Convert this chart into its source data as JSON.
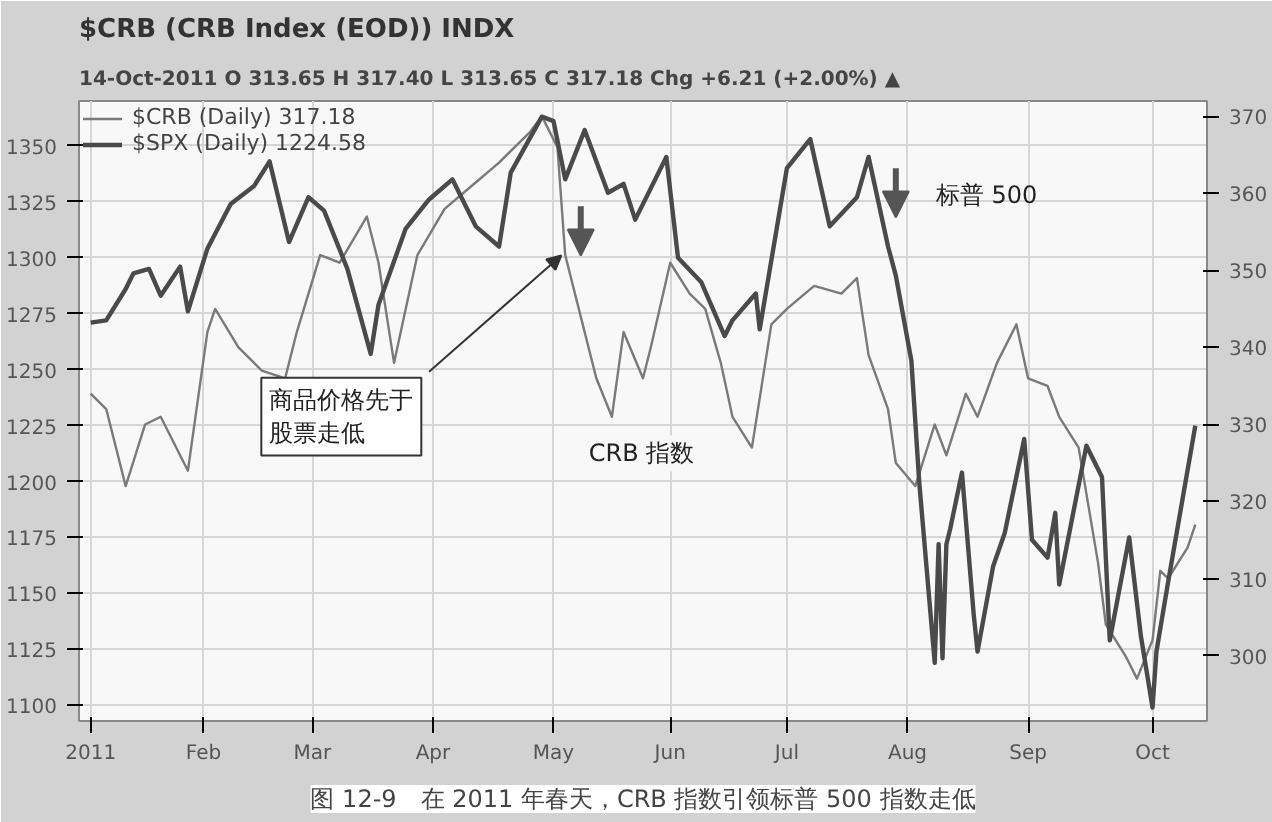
{
  "chart_data": {
    "type": "line",
    "title": "$CRB (CRB Index (EOD)) INDX",
    "subtitle": "14-Oct-2011    O 313.65  H 317.40  L 313.65  C 317.18  Chg +6.21 (+2.00%) ▲",
    "xlim": [
      "2010-12-31",
      "2011-10-17"
    ],
    "xticks": [
      {
        "value": "2011-01-03",
        "label": "2011"
      },
      {
        "value": "2011-02-01",
        "label": "Feb"
      },
      {
        "value": "2011-03-01",
        "label": "Mar"
      },
      {
        "value": "2011-04-01",
        "label": "Apr"
      },
      {
        "value": "2011-05-02",
        "label": "May"
      },
      {
        "value": "2011-06-01",
        "label": "Jun"
      },
      {
        "value": "2011-07-01",
        "label": "Jul"
      },
      {
        "value": "2011-08-01",
        "label": "Aug"
      },
      {
        "value": "2011-09-01",
        "label": "Sep"
      },
      {
        "value": "2011-10-03",
        "label": "Oct"
      }
    ],
    "ylim": [
      1093,
      1370
    ],
    "yticks": [
      1100,
      1125,
      1150,
      1175,
      1200,
      1225,
      1250,
      1275,
      1300,
      1325,
      1350
    ],
    "y2lim": [
      291.5,
      372
    ],
    "y2ticks": [
      300,
      310,
      320,
      330,
      340,
      350,
      360,
      370
    ],
    "grid": true,
    "legend": "top left",
    "series": [
      {
        "name": "$CRB (Daily) 317.18",
        "axis": "y2",
        "color": "#7a7a7a",
        "x": [
          "2011-01-03",
          "2011-01-07",
          "2011-01-12",
          "2011-01-17",
          "2011-01-21",
          "2011-01-28",
          "2011-02-02",
          "2011-02-04",
          "2011-02-10",
          "2011-02-16",
          "2011-02-22",
          "2011-02-25",
          "2011-03-03",
          "2011-03-08",
          "2011-03-15",
          "2011-03-18",
          "2011-03-22",
          "2011-03-28",
          "2011-04-04",
          "2011-04-11",
          "2011-04-18",
          "2011-04-26",
          "2011-04-29",
          "2011-05-03",
          "2011-05-05",
          "2011-05-09",
          "2011-05-13",
          "2011-05-17",
          "2011-05-20",
          "2011-05-25",
          "2011-05-27",
          "2011-06-01",
          "2011-06-06",
          "2011-06-10",
          "2011-06-14",
          "2011-06-17",
          "2011-06-22",
          "2011-06-27",
          "2011-07-01",
          "2011-07-08",
          "2011-07-15",
          "2011-07-19",
          "2011-07-22",
          "2011-07-27",
          "2011-07-29",
          "2011-08-03",
          "2011-08-08",
          "2011-08-11",
          "2011-08-16",
          "2011-08-19",
          "2011-08-24",
          "2011-08-29",
          "2011-09-01",
          "2011-09-06",
          "2011-09-09",
          "2011-09-14",
          "2011-09-19",
          "2011-09-21",
          "2011-09-26",
          "2011-09-29",
          "2011-10-03",
          "2011-10-05",
          "2011-10-07",
          "2011-10-12",
          "2011-10-14"
        ],
        "values": [
          334,
          332,
          322,
          330,
          331,
          324,
          342,
          345,
          340,
          337,
          336,
          342,
          352,
          351,
          357,
          351,
          338,
          352,
          358,
          361,
          364,
          368,
          370,
          366,
          352,
          344,
          336,
          331,
          342,
          336,
          340,
          351,
          347,
          345,
          338,
          331,
          327,
          343,
          345,
          348,
          347,
          349,
          339,
          332,
          325,
          322,
          330,
          326,
          334,
          331,
          338,
          343,
          336,
          335,
          331,
          327,
          312,
          304,
          300,
          297,
          302,
          311,
          310,
          314,
          317
        ]
      },
      {
        "name": "$SPX (Daily) 1224.58",
        "color": "#4a4a4a",
        "x": [
          "2011-01-03",
          "2011-01-07",
          "2011-01-12",
          "2011-01-14",
          "2011-01-18",
          "2011-01-21",
          "2011-01-26",
          "2011-01-28",
          "2011-02-02",
          "2011-02-08",
          "2011-02-14",
          "2011-02-18",
          "2011-02-23",
          "2011-02-28",
          "2011-03-04",
          "2011-03-10",
          "2011-03-16",
          "2011-03-18",
          "2011-03-25",
          "2011-03-31",
          "2011-04-06",
          "2011-04-12",
          "2011-04-18",
          "2011-04-21",
          "2011-04-29",
          "2011-05-02",
          "2011-05-05",
          "2011-05-10",
          "2011-05-16",
          "2011-05-20",
          "2011-05-23",
          "2011-05-31",
          "2011-06-03",
          "2011-06-09",
          "2011-06-15",
          "2011-06-17",
          "2011-06-23",
          "2011-06-24",
          "2011-07-01",
          "2011-07-07",
          "2011-07-12",
          "2011-07-19",
          "2011-07-22",
          "2011-07-27",
          "2011-07-29",
          "2011-08-02",
          "2011-08-04",
          "2011-08-08",
          "2011-08-09",
          "2011-08-10",
          "2011-08-11",
          "2011-08-12",
          "2011-08-15",
          "2011-08-18",
          "2011-08-19",
          "2011-08-23",
          "2011-08-26",
          "2011-08-31",
          "2011-09-02",
          "2011-09-06",
          "2011-09-08",
          "2011-09-09",
          "2011-09-16",
          "2011-09-20",
          "2011-09-22",
          "2011-09-27",
          "2011-09-30",
          "2011-10-03",
          "2011-10-04",
          "2011-10-07",
          "2011-10-11",
          "2011-10-14"
        ],
        "values": [
          1271,
          1272,
          1286,
          1293,
          1295,
          1283,
          1296,
          1276,
          1304,
          1324,
          1332,
          1343,
          1307,
          1327,
          1321,
          1295,
          1257,
          1279,
          1313,
          1326,
          1335,
          1314,
          1305,
          1338,
          1363,
          1361,
          1335,
          1357,
          1329,
          1333,
          1317,
          1345,
          1300,
          1289,
          1265,
          1272,
          1284,
          1268,
          1340,
          1353,
          1314,
          1327,
          1345,
          1305,
          1292,
          1254,
          1200,
          1119,
          1172,
          1121,
          1172,
          1179,
          1204,
          1141,
          1124,
          1162,
          1177,
          1219,
          1174,
          1166,
          1186,
          1154,
          1216,
          1202,
          1129,
          1175,
          1131,
          1099,
          1124,
          1155,
          1195,
          1225
        ]
      }
    ],
    "annotations": [
      {
        "text": "商品价格先于股票走低",
        "x": "2011-05-04",
        "y": 1301
      },
      "CRB 指数",
      "标普 500",
      "图 12-9　在 2011 年春天，CRB 指数引领标普 500 指数走低"
    ]
  }
}
